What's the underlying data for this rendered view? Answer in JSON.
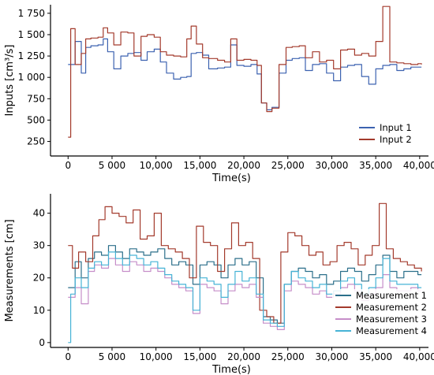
{
  "chart_data": [
    {
      "type": "line",
      "ylabel": "Inputs [cm³/s]",
      "xlabel": "Time(s)",
      "xlim": [
        -2000,
        41000
      ],
      "ylim": [
        80,
        1850
      ],
      "xticks": [
        0,
        5000,
        10000,
        15000,
        20000,
        25000,
        30000,
        35000,
        40000
      ],
      "xtick_labels": [
        "0",
        "5 000",
        "10,000",
        "15,000",
        "20,000",
        "25,000",
        "30,000",
        "35,000",
        "40,000"
      ],
      "yticks": [
        250,
        500,
        750,
        1000,
        1250,
        1500,
        1750
      ],
      "ytick_labels": [
        "250",
        "500",
        "750",
        "1 000",
        "1 250",
        "1 500",
        "1 750"
      ],
      "legend": "bottom-right",
      "series": [
        {
          "name": "Input 1",
          "color": "#3c62b0",
          "x": [
            0,
            800,
            1500,
            2000,
            2600,
            3400,
            4000,
            4500,
            5200,
            6000,
            6800,
            7500,
            8300,
            9000,
            9800,
            10500,
            11200,
            12000,
            12800,
            13500,
            14000,
            14600,
            15300,
            16000,
            17000,
            17800,
            18500,
            19200,
            20000,
            20800,
            21500,
            22000,
            22600,
            23200,
            24000,
            24800,
            25500,
            26300,
            27000,
            27800,
            28600,
            29400,
            30200,
            31000,
            31800,
            32600,
            33400,
            34200,
            35000,
            35800,
            36600,
            37400,
            38200,
            39000,
            39800,
            40200
          ],
          "y": [
            1150,
            1420,
            1050,
            1350,
            1370,
            1380,
            1450,
            1300,
            1100,
            1250,
            1280,
            1290,
            1200,
            1300,
            1330,
            1180,
            1050,
            980,
            1000,
            1010,
            1280,
            1290,
            1260,
            1100,
            1110,
            1120,
            1380,
            1140,
            1130,
            1150,
            1040,
            700,
            620,
            650,
            1050,
            1200,
            1220,
            1230,
            1080,
            1150,
            1160,
            1050,
            960,
            1120,
            1140,
            1150,
            1010,
            920,
            1100,
            1140,
            1150,
            1080,
            1100,
            1120,
            1120,
            1120
          ]
        },
        {
          "name": "Input 2",
          "color": "#a33a2c",
          "x": [
            0,
            300,
            800,
            1500,
            2000,
            2600,
            3400,
            4000,
            4500,
            5200,
            6000,
            6800,
            7500,
            8300,
            9000,
            9800,
            10500,
            11200,
            12000,
            12800,
            13500,
            14000,
            14600,
            15300,
            16000,
            17000,
            17800,
            18500,
            19200,
            20000,
            20800,
            21500,
            22000,
            22600,
            23200,
            24000,
            24800,
            25500,
            26300,
            27000,
            27800,
            28600,
            29400,
            30200,
            31000,
            31800,
            32600,
            33400,
            34200,
            35000,
            35800,
            36600,
            37400,
            38200,
            39000,
            39800,
            40200
          ],
          "y": [
            300,
            1570,
            1150,
            1280,
            1450,
            1460,
            1470,
            1580,
            1520,
            1380,
            1530,
            1520,
            1250,
            1480,
            1500,
            1470,
            1300,
            1260,
            1250,
            1240,
            1450,
            1600,
            1390,
            1230,
            1220,
            1200,
            1180,
            1450,
            1200,
            1210,
            1200,
            1140,
            700,
            600,
            640,
            1150,
            1350,
            1360,
            1370,
            1230,
            1300,
            1180,
            1200,
            1100,
            1320,
            1330,
            1260,
            1280,
            1250,
            1420,
            1830,
            1180,
            1170,
            1160,
            1150,
            1160,
            1150
          ]
        }
      ]
    },
    {
      "type": "line",
      "ylabel": "Measurements [cm]",
      "xlabel": "Time(s)",
      "xlim": [
        -2000,
        41000
      ],
      "ylim": [
        -1.5,
        46
      ],
      "xticks": [
        0,
        5000,
        10000,
        15000,
        20000,
        25000,
        30000,
        35000,
        40000
      ],
      "xtick_labels": [
        "0",
        "5 000",
        "10,000",
        "15,000",
        "20,000",
        "25,000",
        "30,000",
        "35,000",
        "40,000"
      ],
      "yticks": [
        0,
        10,
        20,
        30,
        40
      ],
      "ytick_labels": [
        "0",
        "10",
        "20",
        "30",
        "40"
      ],
      "legend": "bottom-right",
      "series": [
        {
          "name": "Measurement 1",
          "color": "#2b6f8a",
          "x": [
            0,
            800,
            1500,
            2300,
            3000,
            3800,
            4600,
            5400,
            6200,
            7000,
            7800,
            8600,
            9400,
            10200,
            11000,
            11800,
            12600,
            13400,
            14200,
            15000,
            15800,
            16600,
            17400,
            18200,
            19000,
            19800,
            20600,
            21400,
            22200,
            23000,
            23800,
            24600,
            25400,
            26200,
            27000,
            27800,
            28600,
            29400,
            30200,
            31000,
            31800,
            32600,
            33400,
            34200,
            35000,
            35800,
            36600,
            37400,
            38200,
            39000,
            39800,
            40200
          ],
          "y": [
            17,
            25,
            20,
            26,
            28,
            27,
            30,
            28,
            26,
            29,
            28,
            27,
            28,
            29,
            26,
            24,
            25,
            24,
            18,
            24,
            25,
            24,
            20,
            24,
            26,
            24,
            25,
            20,
            8,
            7,
            6,
            18,
            22,
            23,
            22,
            20,
            21,
            18,
            19,
            22,
            23,
            22,
            19,
            21,
            24,
            27,
            22,
            20,
            22,
            22,
            21,
            21
          ]
        },
        {
          "name": "Measurement 2",
          "color": "#a33a2c",
          "x": [
            0,
            500,
            1200,
            2000,
            2800,
            3500,
            4200,
            5000,
            5800,
            6600,
            7400,
            8200,
            9000,
            9800,
            10600,
            11400,
            12200,
            13000,
            13800,
            14600,
            15400,
            16200,
            17000,
            17800,
            18600,
            19400,
            20200,
            21000,
            21800,
            22600,
            23400,
            24200,
            25000,
            25800,
            26600,
            27400,
            28200,
            29000,
            29800,
            30600,
            31400,
            32200,
            33000,
            33800,
            34600,
            35400,
            36200,
            37000,
            37800,
            38600,
            39400,
            40200
          ],
          "y": [
            30,
            23,
            28,
            25,
            33,
            38,
            42,
            40,
            39,
            37,
            41,
            32,
            33,
            40,
            30,
            29,
            28,
            26,
            20,
            36,
            31,
            30,
            22,
            29,
            37,
            30,
            31,
            26,
            10,
            8,
            6,
            28,
            34,
            33,
            30,
            27,
            28,
            24,
            25,
            30,
            31,
            29,
            24,
            27,
            30,
            43,
            29,
            26,
            25,
            24,
            23,
            22
          ]
        },
        {
          "name": "Measurement 3",
          "color": "#c68ec9",
          "x": [
            0,
            800,
            1500,
            2300,
            3000,
            3800,
            4600,
            5400,
            6200,
            7000,
            7800,
            8600,
            9400,
            10200,
            11000,
            11800,
            12600,
            13400,
            14200,
            15000,
            15800,
            16600,
            17400,
            18200,
            19000,
            19800,
            20600,
            21400,
            22200,
            23000,
            23800,
            24600,
            25400,
            26200,
            27000,
            27800,
            28600,
            29400,
            30200,
            31000,
            31800,
            32600,
            33400,
            34200,
            35000,
            35800,
            36600,
            37400,
            38200,
            39000,
            39800,
            40200
          ],
          "y": [
            14,
            17,
            12,
            22,
            24,
            23,
            26,
            24,
            22,
            25,
            24,
            22,
            23,
            22,
            20,
            18,
            17,
            16,
            9,
            18,
            17,
            16,
            12,
            16,
            18,
            17,
            18,
            14,
            6,
            5,
            4,
            16,
            19,
            18,
            17,
            15,
            16,
            14,
            15,
            17,
            18,
            16,
            13,
            15,
            17,
            21,
            17,
            16,
            16,
            17,
            16,
            16
          ]
        },
        {
          "name": "Measurement 4",
          "color": "#46b3d6",
          "x": [
            0,
            300,
            800,
            1500,
            2300,
            3000,
            3800,
            4600,
            5400,
            6200,
            7000,
            7800,
            8600,
            9400,
            10200,
            11000,
            11800,
            12600,
            13400,
            14200,
            15000,
            15800,
            16600,
            17400,
            18200,
            19000,
            19800,
            20600,
            21400,
            22200,
            23000,
            23800,
            24600,
            25400,
            26200,
            27000,
            27800,
            28600,
            29400,
            30200,
            31000,
            31800,
            32600,
            33400,
            34200,
            35000,
            35800,
            36600,
            37400,
            38200,
            39000,
            39800,
            40200
          ],
          "y": [
            0,
            15,
            20,
            17,
            23,
            25,
            24,
            28,
            26,
            24,
            27,
            26,
            24,
            25,
            23,
            21,
            19,
            18,
            17,
            10,
            20,
            19,
            18,
            14,
            18,
            22,
            19,
            20,
            15,
            7,
            6,
            5,
            18,
            22,
            20,
            19,
            17,
            18,
            15,
            16,
            19,
            20,
            18,
            15,
            17,
            20,
            26,
            19,
            18,
            18,
            18,
            17,
            17
          ]
        }
      ]
    }
  ]
}
